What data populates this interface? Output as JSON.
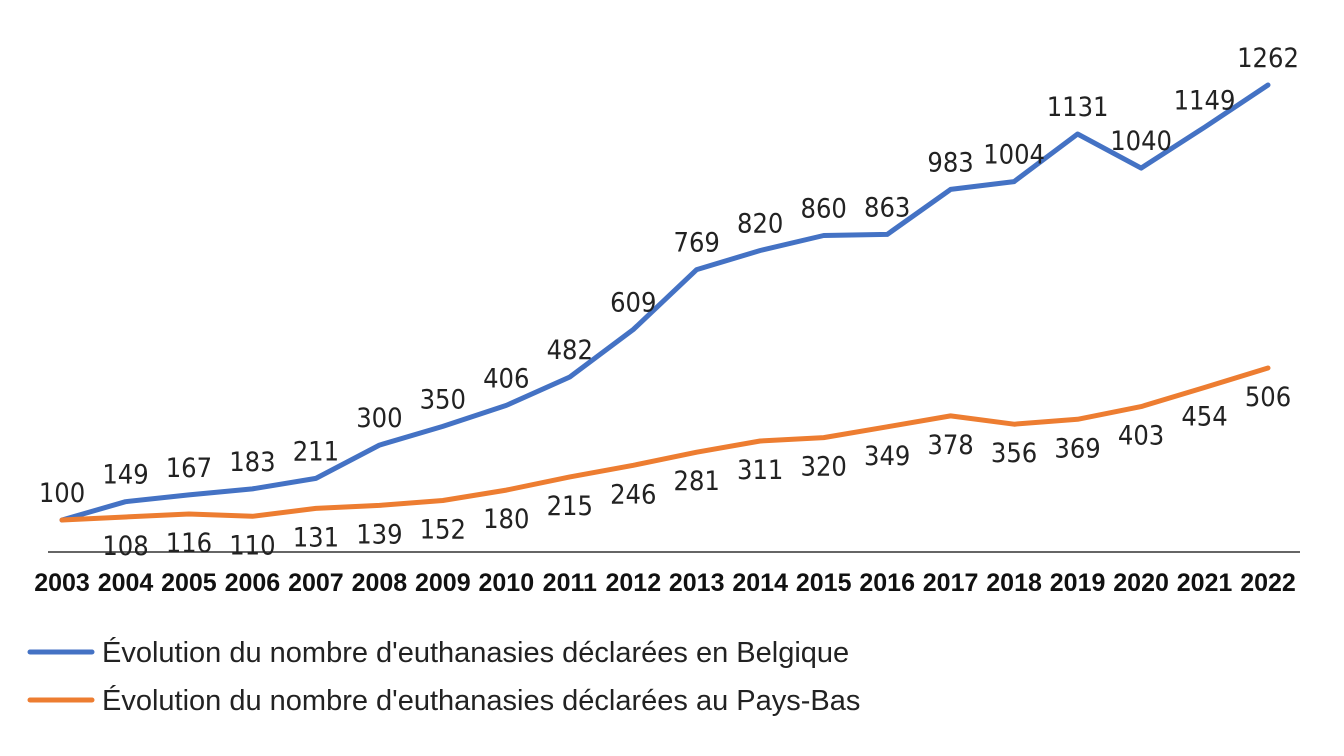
{
  "chart_data": {
    "type": "line",
    "title": "",
    "xlabel": "",
    "ylabel": "",
    "categories": [
      "2003",
      "2004",
      "2005",
      "2006",
      "2007",
      "2008",
      "2009",
      "2010",
      "2011",
      "2012",
      "2013",
      "2014",
      "2015",
      "2016",
      "2017",
      "2018",
      "2019",
      "2020",
      "2021",
      "2022"
    ],
    "ylim": [
      100,
      1262
    ],
    "grid": false,
    "legend_position": "bottom-left",
    "series": [
      {
        "name": "Évolution du nombre d'euthanasies déclarées en Belgique",
        "color": "#4472C4",
        "values": [
          100,
          149,
          167,
          183,
          211,
          300,
          350,
          406,
          482,
          609,
          769,
          820,
          860,
          863,
          983,
          1004,
          1131,
          1040,
          1149,
          1262
        ]
      },
      {
        "name": "Évolution du nombre d'euthanasies déclarées au Pays-Bas",
        "color": "#ED7D31",
        "values": [
          100,
          108,
          116,
          110,
          131,
          139,
          152,
          180,
          215,
          246,
          281,
          311,
          320,
          349,
          378,
          356,
          369,
          403,
          454,
          506
        ]
      }
    ]
  }
}
